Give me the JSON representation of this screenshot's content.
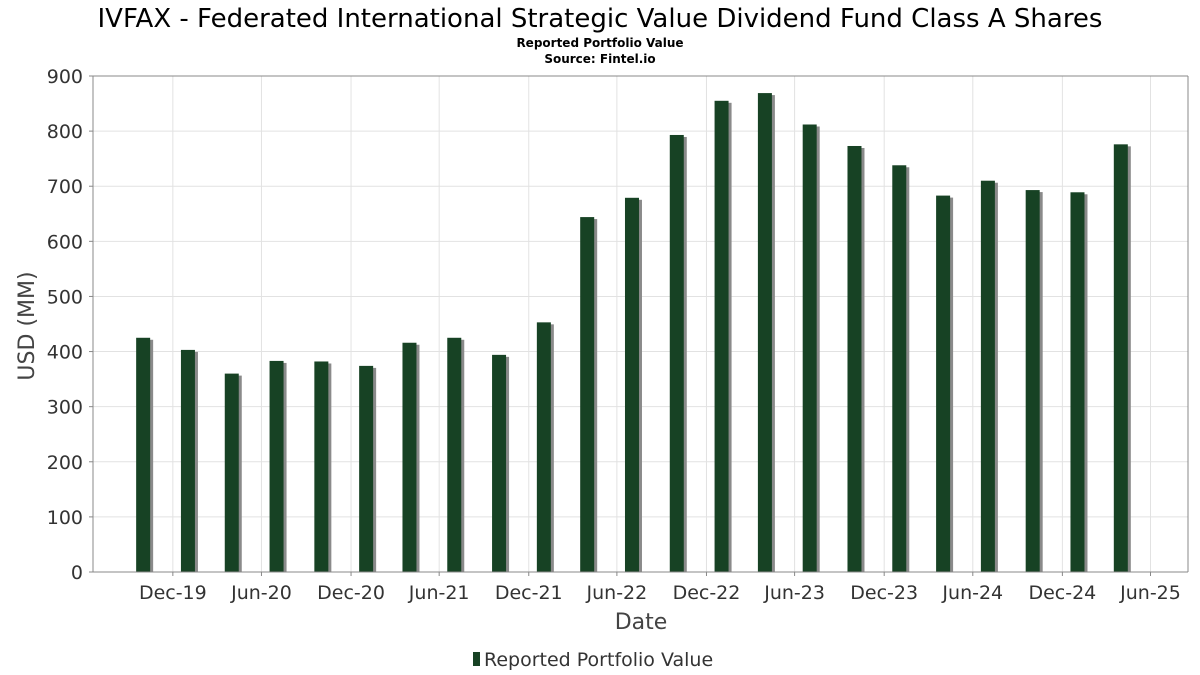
{
  "colors": {
    "bar": "#174224",
    "bar_shadow": "#8a8a8a",
    "grid": "#e2e2e2",
    "axis": "#888888"
  },
  "chart_data": {
    "type": "bar",
    "title": "IVFAX - Federated International Strategic Value Dividend Fund Class A Shares",
    "subtitle": "Reported Portfolio Value",
    "source": "Source: Fintel.io",
    "xlabel": "Date",
    "ylabel": "USD (MM)",
    "ylim": [
      0,
      900
    ],
    "yticks": [
      0,
      100,
      200,
      300,
      400,
      500,
      600,
      700,
      800,
      900
    ],
    "xlim": [
      "2019-07-20",
      "2025-09-15"
    ],
    "xticks": [
      {
        "date": "2019-12-31",
        "label": "Dec-19"
      },
      {
        "date": "2020-06-30",
        "label": "Jun-20"
      },
      {
        "date": "2020-12-31",
        "label": "Dec-20"
      },
      {
        "date": "2021-06-30",
        "label": "Jun-21"
      },
      {
        "date": "2021-12-31",
        "label": "Dec-21"
      },
      {
        "date": "2022-06-30",
        "label": "Jun-22"
      },
      {
        "date": "2022-12-31",
        "label": "Dec-22"
      },
      {
        "date": "2023-06-30",
        "label": "Jun-23"
      },
      {
        "date": "2023-12-31",
        "label": "Dec-23"
      },
      {
        "date": "2024-06-30",
        "label": "Jun-24"
      },
      {
        "date": "2024-12-31",
        "label": "Dec-24"
      },
      {
        "date": "2025-06-30",
        "label": "Jun-25"
      }
    ],
    "grid": true,
    "legend_position": "bottom-center",
    "series": [
      {
        "name": "Reported Portfolio Value",
        "x": [
          "2019-10-31",
          "2020-01-31",
          "2020-04-30",
          "2020-07-31",
          "2020-10-31",
          "2021-01-31",
          "2021-04-30",
          "2021-07-31",
          "2021-10-31",
          "2022-01-31",
          "2022-04-30",
          "2022-07-31",
          "2022-10-31",
          "2023-01-31",
          "2023-04-30",
          "2023-07-31",
          "2023-10-31",
          "2024-01-31",
          "2024-04-30",
          "2024-07-31",
          "2024-10-31",
          "2025-01-31",
          "2025-04-30"
        ],
        "values": [
          425,
          403,
          360,
          383,
          382,
          374,
          416,
          425,
          394,
          453,
          644,
          679,
          793,
          855,
          869,
          812,
          773,
          738,
          683,
          710,
          693,
          689,
          776
        ]
      }
    ]
  }
}
